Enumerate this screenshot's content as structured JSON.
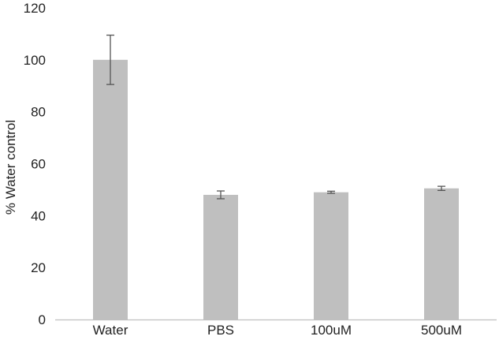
{
  "chart_data": {
    "type": "bar",
    "categories": [
      "Water",
      "PBS",
      "100uM",
      "500uM"
    ],
    "values": [
      100,
      48,
      49,
      50.5
    ],
    "errors": [
      9.5,
      1.5,
      0.4,
      0.8
    ],
    "ylabel": "% Water control",
    "ylim": [
      0,
      120
    ],
    "yticks": [
      0,
      20,
      40,
      60,
      80,
      100,
      120
    ],
    "grid": false,
    "colors": {
      "bar": "#bfbfbf",
      "error": "#555555",
      "axis": "#bfbfbf"
    }
  }
}
